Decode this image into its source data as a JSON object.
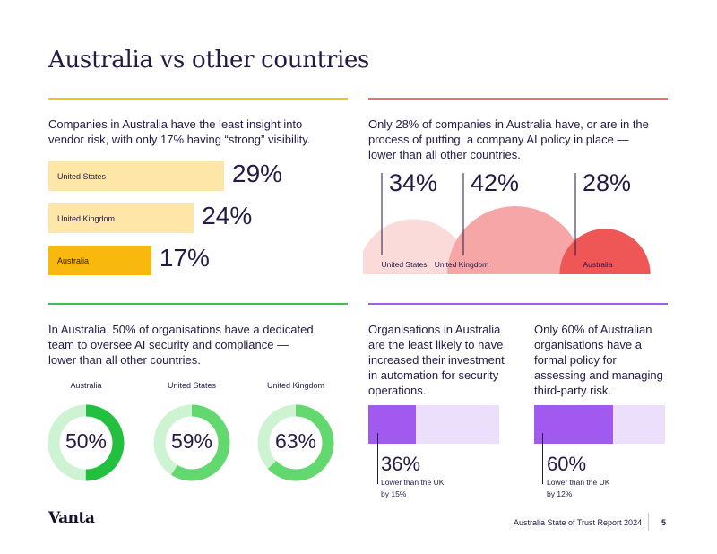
{
  "title": "Australia vs other countries",
  "colors": {
    "yellow_rule": "#e8c81a",
    "red_rule": "#e57373",
    "green_rule": "#3fc052",
    "purple_rule": "#a05ee6",
    "bar_light": "#fde6a8",
    "bar_dark": "#f8b80e",
    "arc_us": "#fbdada",
    "arc_uk": "#f6a6a6",
    "arc_au": "#ef5757",
    "donut_track": "#cdf3d3",
    "donut_au": "#22c03e",
    "donut_other": "#63d86f",
    "purple_fill": "#a259f0",
    "purple_track": "#ecdffb"
  },
  "section1": {
    "text": "Companies in Australia have the least insight into vendor risk, with only 17% having “strong” visibility.",
    "chart_data": {
      "type": "bar",
      "categories": [
        "United States",
        "United Kingdom",
        "Australia"
      ],
      "values": [
        29,
        24,
        17
      ],
      "value_labels": [
        "29%",
        "24%",
        "17%"
      ]
    }
  },
  "section2": {
    "text": "Only 28% of companies in Australia have, or are in the process of putting, a company AI policy in place — lower than all other countries.",
    "chart_data": {
      "type": "area",
      "categories": [
        "United States",
        "United Kingdom",
        "Australia"
      ],
      "values": [
        34,
        42,
        28
      ],
      "value_labels": [
        "34%",
        "42%",
        "28%"
      ]
    }
  },
  "section3": {
    "text": "In Australia, 50% of organisations have a dedicated team to oversee AI security and compliance — lower than all other countries.",
    "chart_data": {
      "type": "pie",
      "categories": [
        "Australia",
        "United States",
        "United Kingdom"
      ],
      "values": [
        50,
        59,
        63
      ],
      "value_labels": [
        "50%",
        "59%",
        "63%"
      ]
    }
  },
  "section4": {
    "text": "Organisations in Australia are the least likely to have increased their investment in automation for security operations.",
    "chart_data": {
      "type": "bar",
      "categories": [
        "Australia"
      ],
      "values": [
        36
      ],
      "value_labels": [
        "36%"
      ]
    },
    "note": "Lower than the UK by 15%"
  },
  "section5": {
    "text": "Only 60% of Australian organisations have a formal policy for assessing and managing third-party risk.",
    "chart_data": {
      "type": "bar",
      "categories": [
        "Australia"
      ],
      "values": [
        60
      ],
      "value_labels": [
        "60%"
      ]
    },
    "note": "Lower than the UK by 12%"
  },
  "footer": {
    "logo": "Vanta",
    "report": "Australia State of Trust Report 2024",
    "page": "5"
  }
}
